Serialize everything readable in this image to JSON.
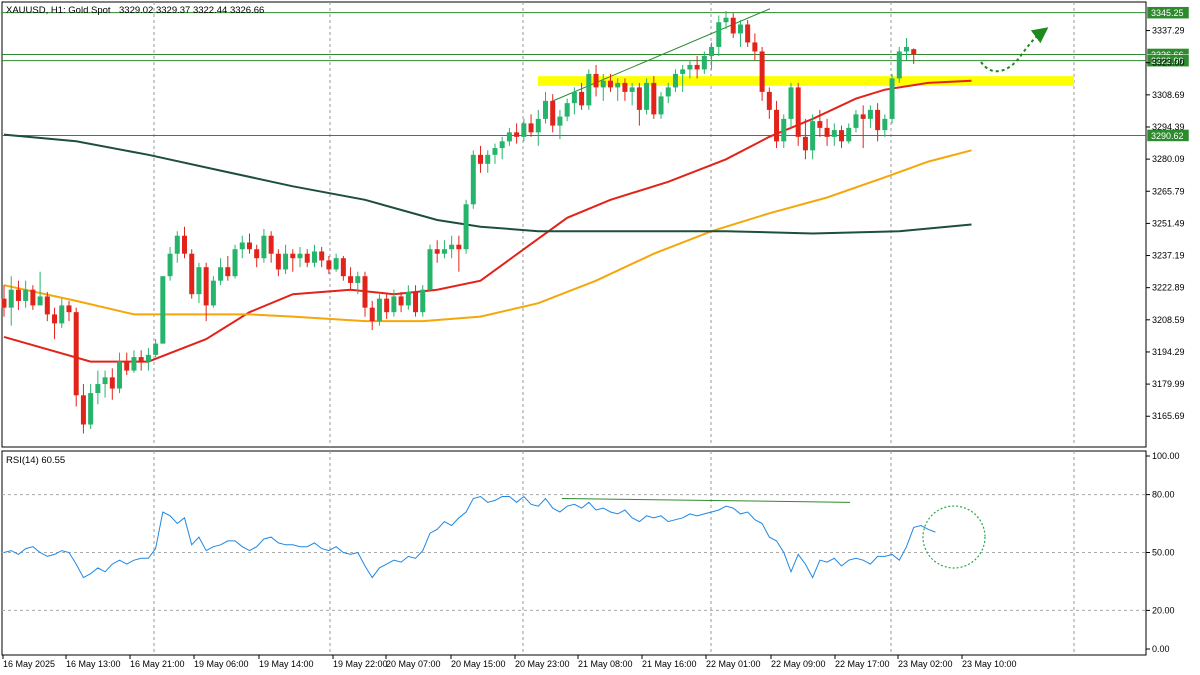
{
  "header": {
    "symbol": "XAUUSD, H1:  Gold Spot",
    "ohlc": "3329.02 3329.37 3322.44 3326.66"
  },
  "rsi_label": "RSI(14) 60.55",
  "chart_data": {
    "type": "candlestick",
    "title": "XAUUSD, H1: Gold Spot",
    "ylim": [
      3152,
      3350
    ],
    "y_ticks": [
      "3337.29",
      "3323.00",
      "3308.69",
      "3294.39",
      "3280.09",
      "3265.79",
      "3251.49",
      "3237.19",
      "3222.89",
      "3208.59",
      "3194.29",
      "3179.99",
      "3165.69"
    ],
    "x_ticks": [
      "16 May 2025",
      "16 May 13:00",
      "16 May 21:00",
      "19 May 06:00",
      "19 May 14:00",
      "19 May 22:00",
      "20 May 07:00",
      "20 May 15:00",
      "20 May 23:00",
      "21 May 08:00",
      "21 May 16:00",
      "22 May 01:00",
      "22 May 09:00",
      "22 May 17:00",
      "23 May 02:00",
      "23 May 10:00"
    ],
    "price_tags": [
      {
        "value": "3345.25",
        "price": 3345.25
      },
      {
        "value": "3326.66",
        "price": 3326.66
      },
      {
        "value": "3323.90",
        "price": 3323.9
      },
      {
        "value": "3290.62",
        "price": 3290.62
      }
    ],
    "horizontal_levels": [
      3345.25,
      3323.9,
      3290.62
    ],
    "resistance_zone": [
      3312.7,
      3317.0
    ],
    "trendline": [
      [
        3306.0,
        32
      ],
      [
        3347.0,
        111
      ]
    ],
    "candles": [
      [
        3218,
        3224,
        3210,
        3214
      ],
      [
        3214,
        3228,
        3206,
        3222
      ],
      [
        3222,
        3226,
        3213,
        3217
      ],
      [
        3217,
        3226,
        3214,
        3222
      ],
      [
        3222,
        3224,
        3213,
        3215
      ],
      [
        3215,
        3230,
        3215,
        3219
      ],
      [
        3219,
        3221,
        3208,
        3211
      ],
      [
        3211,
        3214,
        3200,
        3207
      ],
      [
        3207,
        3218,
        3205,
        3215
      ],
      [
        3215,
        3217,
        3208,
        3212
      ],
      [
        3212,
        3214,
        3170,
        3175
      ],
      [
        3175,
        3180,
        3158,
        3162
      ],
      [
        3162,
        3180,
        3160,
        3176
      ],
      [
        3176,
        3186,
        3171,
        3180
      ],
      [
        3180,
        3186,
        3174,
        3183
      ],
      [
        3183,
        3187,
        3173,
        3178
      ],
      [
        3178,
        3194,
        3176,
        3190
      ],
      [
        3190,
        3194,
        3184,
        3186
      ],
      [
        3186,
        3195,
        3185,
        3192
      ],
      [
        3192,
        3195,
        3186,
        3190
      ],
      [
        3190,
        3196,
        3186,
        3193
      ],
      [
        3193,
        3200,
        3192,
        3198
      ],
      [
        3198,
        3228,
        3198,
        3228
      ],
      [
        3228,
        3241,
        3226,
        3238
      ],
      [
        3238,
        3248,
        3234,
        3246
      ],
      [
        3246,
        3250,
        3236,
        3238
      ],
      [
        3238,
        3240,
        3218,
        3220
      ],
      [
        3220,
        3234,
        3216,
        3232
      ],
      [
        3232,
        3234,
        3208,
        3215
      ],
      [
        3215,
        3228,
        3214,
        3226
      ],
      [
        3226,
        3236,
        3224,
        3232
      ],
      [
        3232,
        3237,
        3226,
        3228
      ],
      [
        3228,
        3242,
        3227,
        3240
      ],
      [
        3240,
        3246,
        3236,
        3243
      ],
      [
        3243,
        3247,
        3238,
        3240
      ],
      [
        3240,
        3242,
        3232,
        3236
      ],
      [
        3236,
        3249,
        3234,
        3246
      ],
      [
        3246,
        3248,
        3234,
        3238
      ],
      [
        3238,
        3240,
        3228,
        3231
      ],
      [
        3231,
        3242,
        3229,
        3238
      ],
      [
        3238,
        3240,
        3230,
        3236
      ],
      [
        3236,
        3241,
        3232,
        3238
      ],
      [
        3238,
        3240,
        3232,
        3234
      ],
      [
        3234,
        3242,
        3232,
        3239
      ],
      [
        3239,
        3241,
        3232,
        3235
      ],
      [
        3235,
        3237,
        3229,
        3231
      ],
      [
        3231,
        3238,
        3230,
        3236
      ],
      [
        3236,
        3237,
        3226,
        3228
      ],
      [
        3228,
        3232,
        3222,
        3225
      ],
      [
        3225,
        3230,
        3220,
        3228
      ],
      [
        3228,
        3230,
        3210,
        3214
      ],
      [
        3214,
        3217,
        3204,
        3208
      ],
      [
        3208,
        3220,
        3206,
        3218
      ],
      [
        3218,
        3220,
        3209,
        3212
      ],
      [
        3212,
        3222,
        3210,
        3219
      ],
      [
        3219,
        3221,
        3212,
        3215
      ],
      [
        3215,
        3224,
        3213,
        3221
      ],
      [
        3221,
        3224,
        3210,
        3212
      ],
      [
        3212,
        3224,
        3210,
        3222
      ],
      [
        3222,
        3242,
        3221,
        3240
      ],
      [
        3240,
        3244,
        3234,
        3238
      ],
      [
        3238,
        3244,
        3236,
        3240
      ],
      [
        3240,
        3246,
        3236,
        3242
      ],
      [
        3242,
        3246,
        3230,
        3240
      ],
      [
        3240,
        3262,
        3238,
        3260
      ],
      [
        3260,
        3284,
        3258,
        3282
      ],
      [
        3282,
        3286,
        3274,
        3278
      ],
      [
        3278,
        3284,
        3274,
        3282
      ],
      [
        3282,
        3287,
        3278,
        3285
      ],
      [
        3285,
        3290,
        3280,
        3288
      ],
      [
        3288,
        3294,
        3286,
        3292
      ],
      [
        3292,
        3296,
        3287,
        3290
      ],
      [
        3290,
        3298,
        3288,
        3296
      ],
      [
        3296,
        3300,
        3290,
        3292
      ],
      [
        3292,
        3302,
        3286,
        3298
      ],
      [
        3298,
        3310,
        3296,
        3306
      ],
      [
        3306,
        3309,
        3292,
        3295
      ],
      [
        3295,
        3302,
        3289,
        3299
      ],
      [
        3299,
        3307,
        3297,
        3305
      ],
      [
        3305,
        3312,
        3300,
        3310
      ],
      [
        3310,
        3314,
        3302,
        3304
      ],
      [
        3304,
        3320,
        3302,
        3318
      ],
      [
        3318,
        3322,
        3308,
        3312
      ],
      [
        3312,
        3318,
        3306,
        3315
      ],
      [
        3315,
        3318,
        3310,
        3312
      ],
      [
        3312,
        3316,
        3306,
        3314
      ],
      [
        3314,
        3316,
        3306,
        3310
      ],
      [
        3310,
        3314,
        3304,
        3312
      ],
      [
        3312,
        3314,
        3295,
        3302
      ],
      [
        3302,
        3316,
        3300,
        3314
      ],
      [
        3314,
        3317,
        3298,
        3300
      ],
      [
        3300,
        3310,
        3298,
        3308
      ],
      [
        3308,
        3314,
        3305,
        3312
      ],
      [
        3312,
        3320,
        3310,
        3318
      ],
      [
        3318,
        3322,
        3310,
        3320
      ],
      [
        3320,
        3324,
        3316,
        3322
      ],
      [
        3322,
        3326,
        3316,
        3320
      ],
      [
        3320,
        3328,
        3318,
        3326
      ],
      [
        3326,
        3332,
        3320,
        3330
      ],
      [
        3330,
        3344,
        3326,
        3341
      ],
      [
        3341,
        3346,
        3338,
        3343
      ],
      [
        3343,
        3345,
        3334,
        3336
      ],
      [
        3336,
        3342,
        3330,
        3340
      ],
      [
        3340,
        3342,
        3330,
        3332
      ],
      [
        3332,
        3336,
        3324,
        3328
      ],
      [
        3328,
        3330,
        3306,
        3310
      ],
      [
        3310,
        3312,
        3298,
        3302
      ],
      [
        3302,
        3306,
        3285,
        3288
      ],
      [
        3288,
        3300,
        3285,
        3298
      ],
      [
        3298,
        3314,
        3294,
        3312
      ],
      [
        3312,
        3314,
        3286,
        3290
      ],
      [
        3290,
        3298,
        3280,
        3284
      ],
      [
        3284,
        3300,
        3280,
        3297
      ],
      [
        3297,
        3302,
        3290,
        3294
      ],
      [
        3294,
        3298,
        3286,
        3290
      ],
      [
        3290,
        3296,
        3286,
        3293
      ],
      [
        3293,
        3295,
        3285,
        3288
      ],
      [
        3288,
        3296,
        3287,
        3294
      ],
      [
        3294,
        3302,
        3292,
        3300
      ],
      [
        3300,
        3304,
        3285,
        3298
      ],
      [
        3298,
        3304,
        3294,
        3302
      ],
      [
        3302,
        3305,
        3288,
        3293
      ],
      [
        3293,
        3300,
        3290,
        3298
      ],
      [
        3298,
        3318,
        3296,
        3316
      ],
      [
        3316,
        3330,
        3314,
        3328
      ],
      [
        3328,
        3334,
        3324,
        3330
      ],
      [
        3329.02,
        3329.37,
        3322.44,
        3326.66
      ]
    ],
    "moving_averages": [
      {
        "color": "#e2231a",
        "values": [
          [
            0,
            3201
          ],
          [
            12,
            3190
          ],
          [
            20,
            3190
          ],
          [
            28,
            3200
          ],
          [
            34,
            3212
          ],
          [
            40,
            3220
          ],
          [
            48,
            3222
          ],
          [
            54,
            3220
          ],
          [
            60,
            3222
          ],
          [
            66,
            3226
          ],
          [
            72,
            3240
          ],
          [
            78,
            3254
          ],
          [
            84,
            3262
          ],
          [
            92,
            3270
          ],
          [
            100,
            3280
          ],
          [
            106,
            3290
          ],
          [
            112,
            3298
          ],
          [
            118,
            3307
          ],
          [
            122,
            3311
          ],
          [
            128,
            3314
          ],
          [
            134,
            3315
          ]
        ]
      },
      {
        "color": "#f5a70a",
        "values": [
          [
            0,
            3224
          ],
          [
            10,
            3217
          ],
          [
            18,
            3211
          ],
          [
            26,
            3211
          ],
          [
            34,
            3211
          ],
          [
            40,
            3210
          ],
          [
            50,
            3208
          ],
          [
            58,
            3208
          ],
          [
            66,
            3210
          ],
          [
            74,
            3216
          ],
          [
            82,
            3226
          ],
          [
            90,
            3238
          ],
          [
            98,
            3248
          ],
          [
            106,
            3256
          ],
          [
            114,
            3263
          ],
          [
            122,
            3272
          ],
          [
            128,
            3279
          ],
          [
            134,
            3284
          ]
        ]
      },
      {
        "color": "#1d4f3a",
        "values": [
          [
            0,
            3291
          ],
          [
            10,
            3288
          ],
          [
            20,
            3282
          ],
          [
            30,
            3275
          ],
          [
            40,
            3268
          ],
          [
            50,
            3262
          ],
          [
            60,
            3253
          ],
          [
            66,
            3250
          ],
          [
            74,
            3248
          ],
          [
            86,
            3248
          ],
          [
            100,
            3248
          ],
          [
            112,
            3247
          ],
          [
            124,
            3248
          ],
          [
            134,
            3251
          ]
        ]
      }
    ],
    "rsi": {
      "period": 14,
      "value": 60.55,
      "ylim": [
        0,
        100
      ],
      "levels": [
        80,
        50,
        20
      ],
      "ticks": [
        "100.00",
        "80.00",
        "50.00",
        "20.00",
        "0.00"
      ],
      "values": [
        50,
        51,
        49,
        52,
        53,
        50,
        48,
        49,
        51,
        50,
        44,
        37,
        39,
        42,
        40,
        44,
        46,
        44,
        46,
        47,
        47,
        52,
        71,
        69,
        65,
        68,
        54,
        58,
        51,
        53,
        54,
        56,
        56,
        53,
        51,
        53,
        57,
        58,
        55,
        54,
        54,
        53,
        53,
        55,
        52,
        51,
        53,
        50,
        49,
        50,
        43,
        37,
        42,
        44,
        46,
        45,
        48,
        47,
        51,
        60,
        62,
        66,
        64,
        68,
        71,
        78,
        79,
        76,
        77,
        79,
        79,
        76,
        79,
        75,
        74,
        78,
        73,
        71,
        74,
        75,
        73,
        76,
        72,
        73,
        71,
        70,
        72,
        68,
        66,
        69,
        68,
        69,
        66,
        67,
        68,
        70,
        69,
        70,
        71,
        72,
        74,
        73,
        70,
        71,
        67,
        65,
        58,
        56,
        50,
        40,
        49,
        44,
        37,
        46,
        45,
        47,
        43,
        46,
        47,
        46,
        44,
        48,
        48,
        49,
        46,
        53,
        63,
        64,
        62,
        60.55
      ]
    },
    "rsi_trendline": [
      [
        78,
        32
      ],
      [
        78,
        111
      ]
    ],
    "annotations": [
      "projected up-move arrow",
      "circle around latest RSI"
    ]
  },
  "colors": {
    "bull": "#26b36b",
    "bear": "#e2231a",
    "grid": "#999999",
    "level_line": "#2d8a2d",
    "zone": "#ffff00",
    "arrow": "#1e8a1e"
  }
}
